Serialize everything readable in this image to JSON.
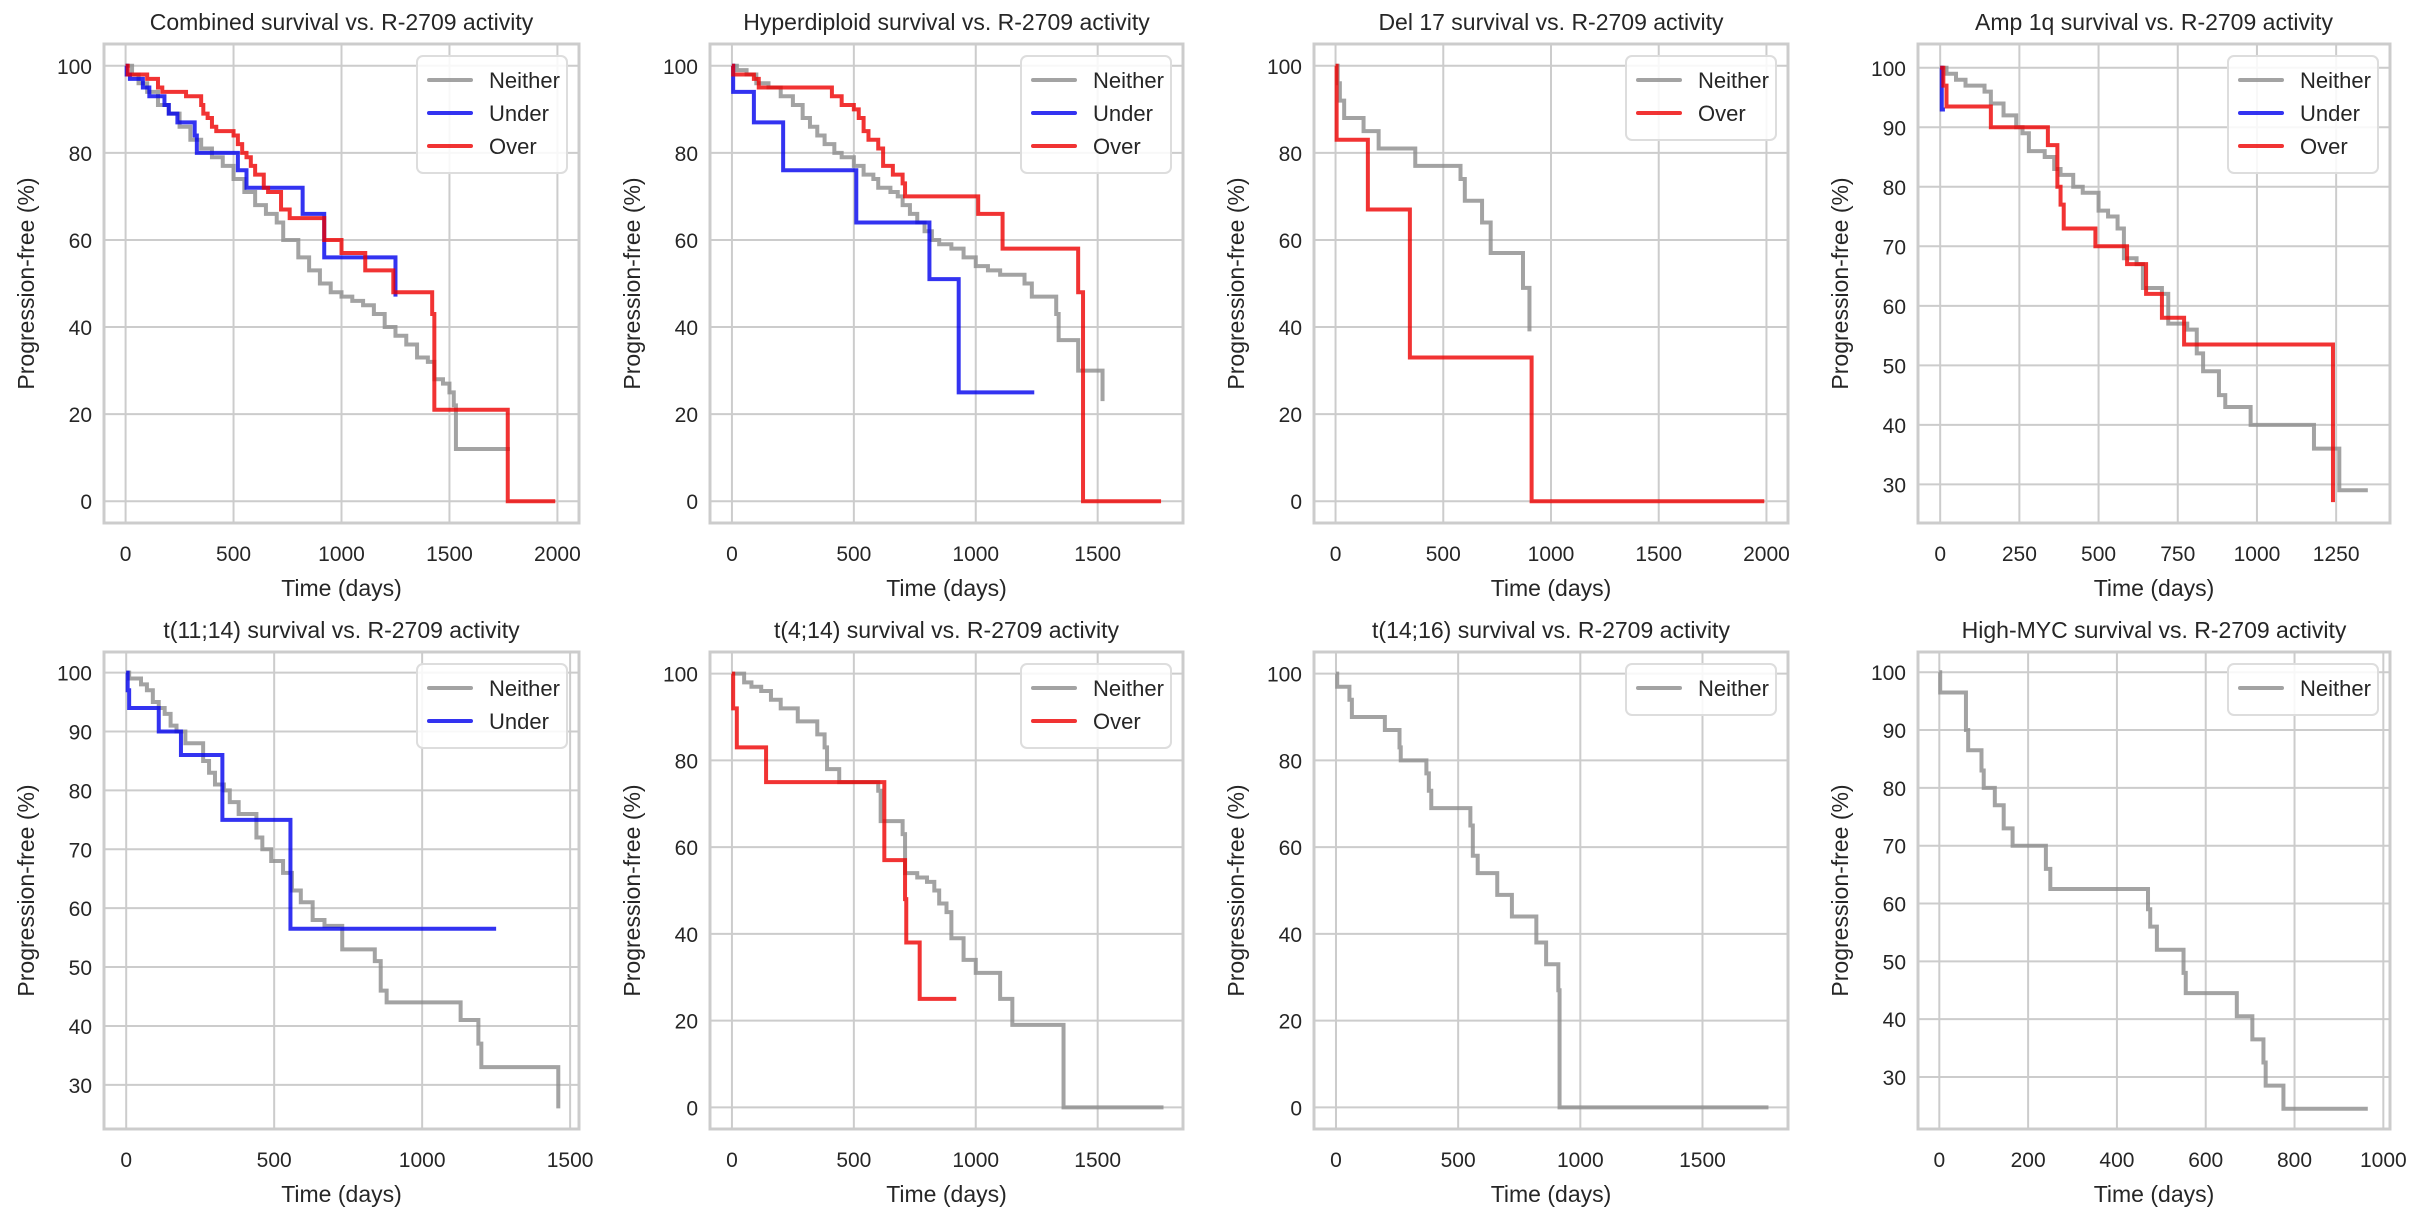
{
  "figure": {
    "description": "Kaplan-Meier progression-free survival curves by R-2709 activity across myeloma subgroups",
    "colors": {
      "Neither": "#8c8c8c",
      "Under": "#0000ee",
      "Over": "#ee0000",
      "grid": "#cccccc",
      "frame": "#cccccc"
    }
  },
  "chart_data": [
    {
      "type": "line",
      "title": "Combined survival vs. R-2709 activity",
      "xlabel": "Time (days)",
      "ylabel": "Progression-free (%)",
      "xlim": [
        -100,
        2100
      ],
      "ylim": [
        -5,
        105
      ],
      "xticks": [
        0,
        500,
        1000,
        1500,
        2000
      ],
      "yticks": [
        0,
        20,
        40,
        60,
        80,
        100
      ],
      "grid": true,
      "legend": "top-right",
      "series": [
        {
          "name": "Neither",
          "x": [
            0,
            30,
            60,
            100,
            150,
            200,
            250,
            300,
            350,
            400,
            450,
            500,
            550,
            600,
            650,
            700,
            730,
            800,
            850,
            900,
            950,
            1000,
            1050,
            1100,
            1150,
            1200,
            1250,
            1300,
            1350,
            1400,
            1430,
            1470,
            1500,
            1520,
            1530,
            1780
          ],
          "y": [
            100,
            98,
            96,
            94,
            91,
            89,
            86,
            83,
            81,
            79,
            77,
            74,
            71,
            68,
            66,
            64,
            60,
            56,
            53,
            50,
            48,
            47,
            46,
            45,
            43,
            40,
            38,
            36,
            33,
            32,
            28,
            27,
            25,
            22,
            12,
            12
          ]
        },
        {
          "name": "Under",
          "x": [
            0,
            5,
            20,
            80,
            110,
            180,
            200,
            240,
            320,
            330,
            500,
            520,
            560,
            800,
            820,
            910,
            920,
            1000,
            1100,
            1240,
            1250
          ],
          "y": [
            100,
            98,
            97,
            95,
            93,
            91,
            89,
            87,
            84,
            80,
            80,
            76,
            72,
            72,
            66,
            66,
            56,
            56,
            56,
            56,
            47
          ]
        },
        {
          "name": "Over",
          "x": [
            0,
            10,
            50,
            100,
            150,
            170,
            250,
            280,
            330,
            350,
            360,
            380,
            400,
            420,
            450,
            500,
            520,
            540,
            560,
            580,
            600,
            640,
            660,
            700,
            720,
            760,
            800,
            910,
            920,
            1000,
            1100,
            1110,
            1230,
            1240,
            1410,
            1420,
            1430,
            1760,
            1770,
            1990
          ],
          "y": [
            100,
            98,
            98,
            97,
            95,
            94,
            94,
            93,
            93,
            91,
            89,
            88,
            86,
            85,
            85,
            84,
            82,
            80,
            79,
            77,
            75,
            72,
            71,
            71,
            67,
            65,
            65,
            65,
            60,
            57,
            57,
            53,
            53,
            48,
            48,
            43,
            21,
            21,
            0,
            0
          ]
        }
      ]
    },
    {
      "type": "line",
      "title": "Hyperdiploid survival vs. R-2709 activity",
      "xlabel": "Time (days)",
      "ylabel": "Progression-free (%)",
      "xlim": [
        -90,
        1850
      ],
      "ylim": [
        -5,
        105
      ],
      "xticks": [
        0,
        500,
        1000,
        1500
      ],
      "yticks": [
        0,
        20,
        40,
        60,
        80,
        100
      ],
      "grid": true,
      "legend": "top-right",
      "series": [
        {
          "name": "Neither",
          "x": [
            0,
            20,
            60,
            100,
            150,
            200,
            250,
            290,
            320,
            350,
            380,
            420,
            450,
            500,
            540,
            580,
            600,
            650,
            680,
            700,
            730,
            760,
            790,
            820,
            850,
            900,
            950,
            1000,
            1050,
            1100,
            1150,
            1200,
            1230,
            1300,
            1330,
            1340,
            1400,
            1420,
            1500,
            1520
          ],
          "y": [
            100,
            99,
            98,
            96,
            95,
            93,
            91,
            88,
            86,
            84,
            82,
            80,
            79,
            77,
            75,
            74,
            72,
            71,
            70,
            68,
            66,
            64,
            62,
            60,
            59,
            58,
            56,
            54,
            53,
            52,
            52,
            50,
            47,
            47,
            43,
            37,
            37,
            30,
            30,
            23
          ]
        },
        {
          "name": "Under",
          "x": [
            0,
            5,
            80,
            90,
            200,
            210,
            500,
            510,
            800,
            810,
            920,
            930,
            1240
          ],
          "y": [
            100,
            94,
            94,
            87,
            87,
            76,
            76,
            64,
            64,
            51,
            51,
            25,
            25
          ]
        },
        {
          "name": "Over",
          "x": [
            0,
            5,
            90,
            110,
            400,
            410,
            450,
            500,
            520,
            540,
            560,
            600,
            620,
            660,
            700,
            710,
            1000,
            1010,
            1100,
            1110,
            1410,
            1420,
            1430,
            1440,
            1760
          ],
          "y": [
            100,
            98,
            97,
            95,
            95,
            93,
            91,
            90,
            88,
            85,
            83,
            81,
            77,
            75,
            73,
            70,
            70,
            66,
            66,
            58,
            58,
            48,
            48,
            0,
            0
          ]
        }
      ]
    },
    {
      "type": "line",
      "title": "Del 17 survival vs. R-2709 activity",
      "xlabel": "Time (days)",
      "ylabel": "Progression-free (%)",
      "xlim": [
        -100,
        2100
      ],
      "ylim": [
        -5,
        105
      ],
      "xticks": [
        0,
        500,
        1000,
        1500,
        2000
      ],
      "yticks": [
        0,
        20,
        40,
        60,
        80,
        100
      ],
      "grid": true,
      "legend": "top-right",
      "series": [
        {
          "name": "Neither",
          "x": [
            0,
            10,
            20,
            40,
            130,
            200,
            370,
            580,
            600,
            680,
            720,
            870,
            900
          ],
          "y": [
            100,
            96,
            92,
            88,
            85,
            81,
            77,
            74,
            69,
            64,
            57,
            49,
            39
          ]
        },
        {
          "name": "Over",
          "x": [
            0,
            5,
            145,
            150,
            340,
            345,
            905,
            910,
            1990
          ],
          "y": [
            100,
            83,
            83,
            67,
            67,
            33,
            33,
            0,
            0
          ]
        }
      ]
    },
    {
      "type": "line",
      "title": "Amp 1q survival vs. R-2709 activity",
      "xlabel": "Time (days)",
      "ylabel": "Progression-free (%)",
      "xlim": [
        -70,
        1420
      ],
      "ylim": [
        23.5,
        104
      ],
      "xticks": [
        0,
        250,
        500,
        750,
        1000,
        1250
      ],
      "yticks": [
        30,
        40,
        50,
        60,
        70,
        80,
        90,
        100
      ],
      "grid": true,
      "legend": "top-right",
      "series": [
        {
          "name": "Neither",
          "x": [
            0,
            20,
            50,
            80,
            140,
            160,
            200,
            240,
            260,
            280,
            330,
            360,
            380,
            420,
            450,
            500,
            530,
            560,
            580,
            620,
            640,
            700,
            720,
            780,
            810,
            830,
            880,
            900,
            980,
            1180,
            1260,
            1350
          ],
          "y": [
            100,
            99,
            98,
            97,
            96,
            94,
            92,
            90,
            89,
            86,
            85,
            83,
            82,
            80,
            79,
            76,
            75,
            73,
            68,
            67,
            63,
            62,
            57,
            56,
            52,
            49,
            45,
            43,
            40,
            36,
            29,
            29
          ]
        },
        {
          "name": "Under",
          "x": [
            0,
            5,
            15
          ],
          "y": [
            100,
            93,
            93
          ]
        },
        {
          "name": "Over",
          "x": [
            0,
            10,
            20,
            140,
            160,
            340,
            370,
            380,
            390,
            490,
            590,
            650,
            700,
            770,
            1240
          ],
          "y": [
            100,
            97,
            93.5,
            93.5,
            90,
            87,
            80,
            77,
            73,
            70,
            67,
            62,
            58,
            53.5,
            27
          ]
        }
      ]
    },
    {
      "type": "line",
      "title": "t(11;14) survival vs. R-2709 activity",
      "xlabel": "Time (days)",
      "ylabel": "Progression-free (%)",
      "xlim": [
        -75,
        1530
      ],
      "ylim": [
        22.5,
        103.5
      ],
      "xticks": [
        0,
        500,
        1000,
        1500
      ],
      "yticks": [
        30,
        40,
        50,
        60,
        70,
        80,
        90,
        100
      ],
      "grid": true,
      "legend": "top-right",
      "series": [
        {
          "name": "Neither",
          "x": [
            0,
            10,
            30,
            50,
            70,
            90,
            110,
            130,
            150,
            170,
            200,
            230,
            260,
            280,
            300,
            330,
            350,
            380,
            430,
            440,
            460,
            490,
            530,
            560,
            590,
            630,
            670,
            730,
            840,
            860,
            880,
            1070,
            1130,
            1190,
            1200,
            1460
          ],
          "y": [
            100,
            99,
            99,
            98,
            97,
            95,
            94,
            93,
            91,
            90,
            88,
            88,
            85,
            83,
            81,
            80,
            78,
            76,
            76,
            72,
            70,
            68,
            66,
            63,
            61,
            58,
            57,
            53,
            51,
            46,
            44,
            44,
            41,
            37,
            33,
            26
          ]
        },
        {
          "name": "Under",
          "x": [
            0,
            5,
            10,
            100,
            110,
            180,
            185,
            320,
            325,
            550,
            555,
            1250
          ],
          "y": [
            100,
            97,
            94,
            94,
            90,
            90,
            86,
            86,
            75,
            75,
            56.5,
            56.5
          ]
        }
      ]
    },
    {
      "type": "line",
      "title": "t(4;14) survival vs. R-2709 activity",
      "xlabel": "Time (days)",
      "ylabel": "Progression-free (%)",
      "xlim": [
        -90,
        1850
      ],
      "ylim": [
        -5,
        105
      ],
      "xticks": [
        0,
        500,
        1000,
        1500
      ],
      "yticks": [
        0,
        20,
        40,
        60,
        80,
        100
      ],
      "grid": true,
      "legend": "top-right",
      "series": [
        {
          "name": "Neither",
          "x": [
            0,
            50,
            80,
            120,
            160,
            200,
            270,
            350,
            380,
            390,
            440,
            580,
            600,
            610,
            700,
            710,
            760,
            800,
            830,
            850,
            880,
            900,
            950,
            1000,
            1100,
            1150,
            1180,
            1360,
            1770
          ],
          "y": [
            100,
            98,
            97,
            96,
            94,
            92,
            89,
            86,
            83,
            78,
            75,
            75,
            73,
            66,
            63,
            54,
            53,
            52,
            50,
            47,
            45,
            39,
            34,
            31,
            25,
            19,
            19,
            0,
            0
          ]
        },
        {
          "name": "Over",
          "x": [
            0,
            5,
            20,
            140,
            620,
            625,
            710,
            715,
            770,
            920
          ],
          "y": [
            100,
            92,
            83,
            75,
            75,
            57,
            48,
            38,
            25,
            25
          ]
        }
      ]
    },
    {
      "type": "line",
      "title": "t(14;16) survival vs. R-2709 activity",
      "xlabel": "Time (days)",
      "ylabel": "Progression-free (%)",
      "xlim": [
        -90,
        1850
      ],
      "ylim": [
        -5,
        105
      ],
      "xticks": [
        0,
        500,
        1000,
        1500
      ],
      "yticks": [
        0,
        20,
        40,
        60,
        80,
        100
      ],
      "grid": true,
      "legend": "top-right",
      "series": [
        {
          "name": "Neither",
          "x": [
            0,
            5,
            55,
            65,
            200,
            260,
            265,
            370,
            380,
            390,
            550,
            560,
            580,
            660,
            720,
            820,
            860,
            910,
            915,
            1770
          ],
          "y": [
            100,
            97,
            94,
            90,
            87,
            83,
            80,
            77,
            73,
            69,
            65,
            58,
            54,
            49,
            44,
            38,
            33,
            27,
            0,
            0
          ]
        }
      ]
    },
    {
      "type": "line",
      "title": "High-MYC survival vs. R-2709 activity",
      "xlabel": "Time (days)",
      "ylabel": "Progression-free (%)",
      "xlim": [
        -48,
        1015
      ],
      "ylim": [
        21,
        103.5
      ],
      "xticks": [
        0,
        200,
        400,
        600,
        800,
        1000
      ],
      "yticks": [
        30,
        40,
        50,
        60,
        70,
        80,
        90,
        100
      ],
      "grid": true,
      "legend": "top-right",
      "series": [
        {
          "name": "Neither",
          "x": [
            0,
            2,
            60,
            65,
            95,
            100,
            125,
            145,
            165,
            240,
            250,
            470,
            475,
            490,
            550,
            555,
            670,
            705,
            730,
            735,
            775,
            965
          ],
          "y": [
            100,
            96.5,
            90,
            86.5,
            83,
            80,
            77,
            73,
            70,
            66,
            62.5,
            59,
            56,
            52,
            48,
            44.5,
            40.5,
            36.5,
            32.5,
            28.5,
            24.5,
            24.5
          ]
        }
      ]
    }
  ]
}
